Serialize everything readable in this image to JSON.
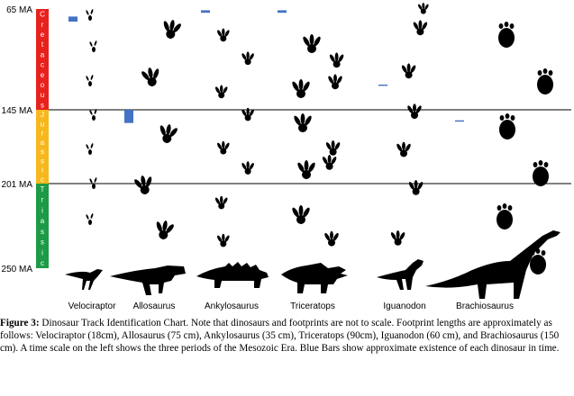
{
  "chart_data": {
    "type": "range_chart",
    "title": "Dinosaur Track Identification Chart",
    "time_axis": {
      "ticks": [
        {
          "label": "65 MA",
          "value": 65
        },
        {
          "label": "145 MA",
          "value": 145
        },
        {
          "label": "201 MA",
          "value": 201
        },
        {
          "label": "250 MA",
          "value": 250
        }
      ]
    },
    "periods": [
      {
        "name": "Cretaceous",
        "letters": [
          "C",
          "r",
          "e",
          "t",
          "a",
          "c",
          "e",
          "o",
          "u",
          "s"
        ],
        "color": "#e8211d",
        "start_ma": 65,
        "end_ma": 145
      },
      {
        "name": "Jurassic",
        "letters": [
          "J",
          "u",
          "r",
          "a",
          "s",
          "s",
          "i",
          "c"
        ],
        "color": "#f6b81c",
        "start_ma": 145,
        "end_ma": 201
      },
      {
        "name": "Triassic",
        "letters": [
          "T",
          "r",
          "i",
          "a",
          "s",
          "s",
          "i",
          "c"
        ],
        "color": "#1c9a46",
        "start_ma": 201,
        "end_ma": 250
      }
    ],
    "dinosaurs": [
      {
        "name": "Velociraptor",
        "from_ma": 75,
        "to_ma": 71,
        "footprint_cm": 18
      },
      {
        "name": "Allosaurus",
        "from_ma": 155,
        "to_ma": 145,
        "footprint_cm": 75
      },
      {
        "name": "Ankylosaurus",
        "from_ma": 68,
        "to_ma": 66,
        "footprint_cm": 35
      },
      {
        "name": "Triceratops",
        "from_ma": 68,
        "to_ma": 66,
        "footprint_cm": 90
      },
      {
        "name": "Iguanodon",
        "from_ma": 126,
        "to_ma": 125,
        "footprint_cm": 60
      },
      {
        "name": "Brachiosaurus",
        "from_ma": 154,
        "to_ma": 153,
        "footprint_cm": 150
      }
    ],
    "bar_color": "#4472c4"
  },
  "caption": {
    "label": "Figure 3:",
    "text": "Dinosaur Track Identification Chart. Note that dinosaurs and footprints are not to scale. Footprint lengths are approximately as follows: Velociraptor (18cm), Allosaurus (75 cm), Ankylosaurus (35 cm), Triceratops (90cm), Iguanodon (60 cm), and Brachiosaurus (150 cm). A time scale on the left shows the three periods of the Mesozoic Era. Blue Bars show approximate existence of each dinosaur in time."
  }
}
